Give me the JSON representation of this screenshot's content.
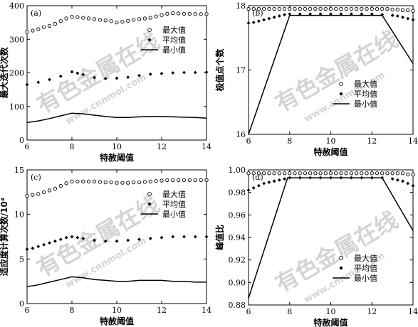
{
  "watermark": {
    "text_cn": "有色金属在线",
    "text_url": "www.cnnmol.com"
  },
  "colors": {
    "axis": "#000000",
    "watermark": "#d4d4d4"
  },
  "chart_data": [
    {
      "id": "a",
      "type": "scatter",
      "panel_label": "(a)",
      "xlabel": "特赦阈值",
      "ylabel": "最大迭代次数",
      "xlim": [
        6,
        14
      ],
      "ylim": [
        0,
        400
      ],
      "xticks": [
        6,
        8,
        10,
        12,
        14
      ],
      "yticks": [
        0,
        100,
        200,
        300,
        400
      ],
      "legend_position": "upper-right",
      "series": [
        {
          "name": "最大值",
          "marker": "circle",
          "x": [
            6,
            6.25,
            6.5,
            6.75,
            7,
            7.25,
            7.5,
            7.75,
            8,
            8.25,
            8.5,
            8.75,
            9,
            9.25,
            9.5,
            9.75,
            10,
            10.25,
            10.5,
            10.75,
            11,
            11.25,
            11.5,
            11.75,
            12,
            12.25,
            12.5,
            12.75,
            13,
            13.25,
            13.5,
            13.75,
            14
          ],
          "y": [
            322,
            326,
            330,
            336,
            340,
            346,
            354,
            362,
            367,
            366,
            364,
            362,
            360,
            358,
            356,
            354,
            350,
            352,
            355,
            358,
            360,
            362,
            364,
            368,
            372,
            376,
            378,
            377,
            376,
            376,
            375,
            375,
            375
          ]
        },
        {
          "name": "平均值",
          "marker": "diamond",
          "x": [
            6,
            6.5,
            7,
            7.5,
            8,
            8.25,
            8.5,
            9,
            9.5,
            10,
            10.5,
            11,
            11.5,
            12,
            12.5,
            13,
            13.5,
            14
          ],
          "y": [
            165,
            172,
            180,
            190,
            203,
            199,
            195,
            186,
            183,
            184,
            187,
            192,
            196,
            198,
            200,
            201,
            201,
            202
          ]
        },
        {
          "name": "最小值",
          "marker": "line",
          "x": [
            6,
            6.5,
            7,
            7.5,
            8,
            8.5,
            9,
            9.5,
            10,
            10.5,
            11,
            11.5,
            12,
            12.5,
            13,
            13.5,
            14
          ],
          "y": [
            52,
            57,
            64,
            72,
            80,
            78,
            74,
            70,
            67,
            67,
            69,
            70,
            70,
            69,
            68,
            67,
            65
          ]
        }
      ]
    },
    {
      "id": "b",
      "type": "scatter",
      "panel_label": "(b)",
      "xlabel": "特赦阈值",
      "ylabel": "极值点个数",
      "xlim": [
        6,
        14
      ],
      "ylim": [
        16,
        18
      ],
      "xticks": [
        6,
        8,
        10,
        12,
        14
      ],
      "yticks": [
        16,
        17,
        18
      ],
      "legend_position": "center-right",
      "series": [
        {
          "name": "最大值",
          "marker": "circle",
          "x": [
            6,
            6.25,
            6.5,
            6.75,
            7,
            7.25,
            7.5,
            7.75,
            8,
            8.25,
            8.5,
            8.75,
            9,
            9.25,
            9.5,
            9.75,
            10,
            10.25,
            10.5,
            10.75,
            11,
            11.25,
            11.5,
            11.75,
            12,
            12.25,
            12.5,
            12.75,
            13,
            13.25,
            13.5,
            13.75,
            14
          ],
          "y": [
            17.95,
            17.95,
            17.95,
            17.95,
            17.95,
            17.95,
            17.95,
            17.95,
            17.95,
            17.95,
            17.95,
            17.95,
            17.95,
            17.95,
            17.95,
            17.95,
            17.95,
            17.95,
            17.95,
            17.95,
            17.95,
            17.95,
            17.95,
            17.95,
            17.95,
            17.95,
            17.95,
            17.95,
            17.94,
            17.94,
            17.93,
            17.93,
            17.92
          ]
        },
        {
          "name": "平均值",
          "marker": "diamond",
          "x": [
            6,
            6.25,
            6.5,
            6.75,
            7,
            7.25,
            7.5,
            7.75,
            8,
            8.5,
            9,
            9.5,
            10,
            10.5,
            11,
            11.5,
            12,
            12.5,
            13,
            13.25,
            13.5,
            13.75,
            14
          ],
          "y": [
            17.73,
            17.74,
            17.76,
            17.78,
            17.8,
            17.82,
            17.84,
            17.86,
            17.87,
            17.87,
            17.87,
            17.87,
            17.87,
            17.87,
            17.87,
            17.87,
            17.87,
            17.86,
            17.85,
            17.84,
            17.82,
            17.8,
            17.78
          ]
        },
        {
          "name": "最小值",
          "marker": "line",
          "x": [
            6,
            8,
            12.5,
            14
          ],
          "y": [
            16,
            17.85,
            17.85,
            17.1
          ]
        }
      ]
    },
    {
      "id": "c",
      "type": "scatter",
      "panel_label": "(c)",
      "xlabel": "特赦阈值",
      "ylabel": "适应度计算次数/10⁴",
      "xlim": [
        6,
        14
      ],
      "ylim": [
        0,
        15
      ],
      "xticks": [
        6,
        8,
        10,
        12,
        14
      ],
      "yticks": [
        0,
        5,
        10,
        15
      ],
      "legend_position": "upper-right",
      "series": [
        {
          "name": "最大值",
          "marker": "circle",
          "x": [
            6,
            6.25,
            6.5,
            6.75,
            7,
            7.25,
            7.5,
            7.75,
            8,
            8.25,
            8.5,
            8.75,
            9,
            9.25,
            9.5,
            9.75,
            10,
            10.25,
            10.5,
            10.75,
            11,
            11.25,
            11.5,
            11.75,
            12,
            12.25,
            12.5,
            12.75,
            13,
            13.25,
            13.5,
            13.75,
            14
          ],
          "y": [
            12.1,
            12.2,
            12.3,
            12.5,
            12.7,
            12.9,
            13.2,
            13.5,
            13.7,
            13.7,
            13.7,
            13.7,
            13.7,
            13.65,
            13.6,
            13.6,
            13.55,
            13.55,
            13.55,
            13.6,
            13.6,
            13.65,
            13.7,
            13.75,
            13.8,
            13.85,
            13.85,
            13.85,
            13.85,
            13.85,
            13.85,
            13.85,
            13.85
          ]
        },
        {
          "name": "平均值",
          "marker": "diamond",
          "x": [
            6,
            6.25,
            6.5,
            6.75,
            7,
            7.25,
            7.5,
            7.75,
            8,
            8.25,
            8.5,
            9,
            9.5,
            10,
            10.5,
            11,
            11.5,
            12,
            12.5,
            13,
            13.5,
            14
          ],
          "y": [
            6.1,
            6.2,
            6.4,
            6.6,
            6.8,
            7.0,
            7.2,
            7.4,
            7.5,
            7.4,
            7.3,
            7.1,
            7.0,
            7.0,
            7.1,
            7.2,
            7.3,
            7.4,
            7.5,
            7.5,
            7.5,
            7.5
          ]
        },
        {
          "name": "最小值",
          "marker": "line",
          "x": [
            6,
            6.5,
            7,
            7.5,
            8,
            8.5,
            9,
            9.5,
            10,
            10.5,
            11,
            11.5,
            12,
            12.5,
            13,
            13.5,
            14
          ],
          "y": [
            1.9,
            2.1,
            2.4,
            2.7,
            3.0,
            2.9,
            2.7,
            2.6,
            2.5,
            2.5,
            2.6,
            2.6,
            2.6,
            2.5,
            2.5,
            2.4,
            2.4
          ]
        }
      ]
    },
    {
      "id": "d",
      "type": "scatter",
      "panel_label": "(d)",
      "xlabel": "特赦阈值",
      "ylabel": "峰值比",
      "xlim": [
        6,
        14
      ],
      "ylim": [
        0.88,
        1.0
      ],
      "xticks": [
        6,
        8,
        10,
        12,
        14
      ],
      "yticks": [
        0.88,
        0.9,
        0.92,
        0.94,
        0.96,
        0.98,
        1.0
      ],
      "legend_position": "lower-right",
      "series": [
        {
          "name": "最大值",
          "marker": "circle",
          "x": [
            6,
            6.25,
            6.5,
            6.75,
            7,
            7.25,
            7.5,
            7.75,
            8,
            8.25,
            8.5,
            8.75,
            9,
            9.25,
            9.5,
            9.75,
            10,
            10.25,
            10.5,
            10.75,
            11,
            11.25,
            11.5,
            11.75,
            12,
            12.25,
            12.5,
            12.75,
            13,
            13.25,
            13.5,
            13.75,
            14
          ],
          "y": [
            0.997,
            0.997,
            0.997,
            0.997,
            0.997,
            0.997,
            0.997,
            0.997,
            0.997,
            0.997,
            0.997,
            0.997,
            0.997,
            0.997,
            0.997,
            0.997,
            0.997,
            0.997,
            0.997,
            0.997,
            0.997,
            0.997,
            0.997,
            0.997,
            0.997,
            0.997,
            0.997,
            0.997,
            0.997,
            0.997,
            0.997,
            0.996,
            0.996
          ]
        },
        {
          "name": "平均值",
          "marker": "diamond",
          "x": [
            6,
            6.25,
            6.5,
            6.75,
            7,
            7.25,
            7.5,
            7.75,
            8,
            8.5,
            9,
            9.5,
            10,
            10.5,
            11,
            11.5,
            12,
            12.5,
            13,
            13.25,
            13.5,
            13.75,
            14
          ],
          "y": [
            0.982,
            0.984,
            0.986,
            0.988,
            0.989,
            0.99,
            0.991,
            0.992,
            0.993,
            0.993,
            0.993,
            0.993,
            0.993,
            0.993,
            0.993,
            0.993,
            0.993,
            0.993,
            0.992,
            0.991,
            0.99,
            0.988,
            0.986
          ]
        },
        {
          "name": "最小值",
          "marker": "line",
          "x": [
            6,
            7.9,
            12.5,
            14
          ],
          "y": [
            0.886,
            0.993,
            0.993,
            0.946
          ]
        }
      ]
    }
  ]
}
